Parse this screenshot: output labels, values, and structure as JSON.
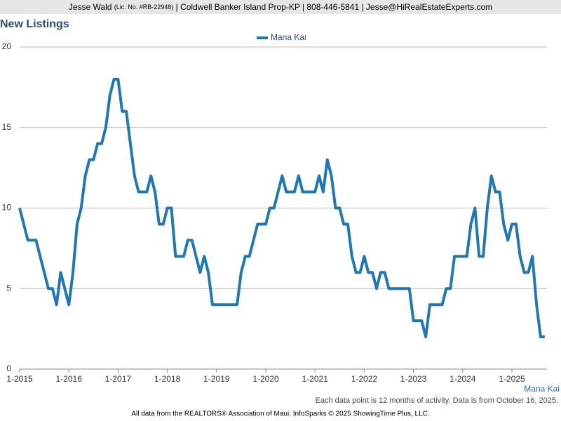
{
  "header": {
    "name": "Jesse Wald",
    "license": "(Lic. No. #RB-22948)",
    "rest": "| Coldwell Banker Island Prop-KP | 808-446-5841 | Jesse@HiRealEstateExperts.com"
  },
  "chart_data": {
    "type": "line",
    "title": "New Listings",
    "categories": [
      "1-2015",
      null,
      null,
      null,
      null,
      null,
      null,
      null,
      null,
      null,
      null,
      null,
      "1-2016",
      null,
      null,
      null,
      null,
      null,
      null,
      null,
      null,
      null,
      null,
      null,
      "1-2017",
      null,
      null,
      null,
      null,
      null,
      null,
      null,
      null,
      null,
      null,
      null,
      "1-2018",
      null,
      null,
      null,
      null,
      null,
      null,
      null,
      null,
      null,
      null,
      null,
      "1-2019",
      null,
      null,
      null,
      null,
      null,
      null,
      null,
      null,
      null,
      null,
      null,
      "1-2020",
      null,
      null,
      null,
      null,
      null,
      null,
      null,
      null,
      null,
      null,
      null,
      "1-2021",
      null,
      null,
      null,
      null,
      null,
      null,
      null,
      null,
      null,
      null,
      null,
      "1-2022",
      null,
      null,
      null,
      null,
      null,
      null,
      null,
      null,
      null,
      null,
      null,
      "1-2023",
      null,
      null,
      null,
      null,
      null,
      null,
      null,
      null,
      null,
      null,
      null,
      "1-2024",
      null,
      null,
      null,
      null,
      null,
      null,
      null,
      null,
      null,
      null,
      null,
      "1-2025",
      null,
      null,
      null,
      null,
      null,
      null,
      null,
      null
    ],
    "series": [
      {
        "name": "Mana Kai",
        "color": "#1f77b4",
        "values": [
          10,
          9,
          8,
          8,
          8,
          7,
          6,
          5,
          5,
          4,
          6,
          5,
          4,
          6,
          9,
          10,
          12,
          13,
          13,
          14,
          14,
          15,
          17,
          18,
          18,
          16,
          16,
          14,
          12,
          11,
          11,
          11,
          12,
          11,
          9,
          9,
          10,
          10,
          7,
          7,
          7,
          8,
          8,
          7,
          6,
          7,
          6,
          4,
          4,
          4,
          4,
          4,
          4,
          4,
          6,
          7,
          7,
          8,
          9,
          9,
          9,
          10,
          10,
          11,
          12,
          11,
          11,
          11,
          12,
          11,
          11,
          11,
          11,
          12,
          11,
          13,
          12,
          10,
          10,
          9,
          9,
          7,
          6,
          6,
          7,
          6,
          6,
          5,
          6,
          6,
          5,
          5,
          5,
          5,
          5,
          5,
          3,
          3,
          3,
          2,
          4,
          4,
          4,
          4,
          5,
          5,
          7,
          7,
          7,
          7,
          9,
          10,
          7,
          7,
          10,
          12,
          11,
          11,
          9,
          8,
          9,
          9,
          7,
          6,
          6,
          7,
          4,
          2,
          2
        ]
      }
    ],
    "ylim": [
      0,
      20
    ],
    "yticks": [
      0,
      5,
      10,
      15,
      20
    ],
    "grid": true,
    "end_label": "Mana Kai",
    "note": "Each data point is 12 months of activity. Data is from October 16, 2025."
  },
  "footer": "All data from the REALTORS® Association of Maui. InfoSparks © 2025 ShowingTime Plus, LLC."
}
